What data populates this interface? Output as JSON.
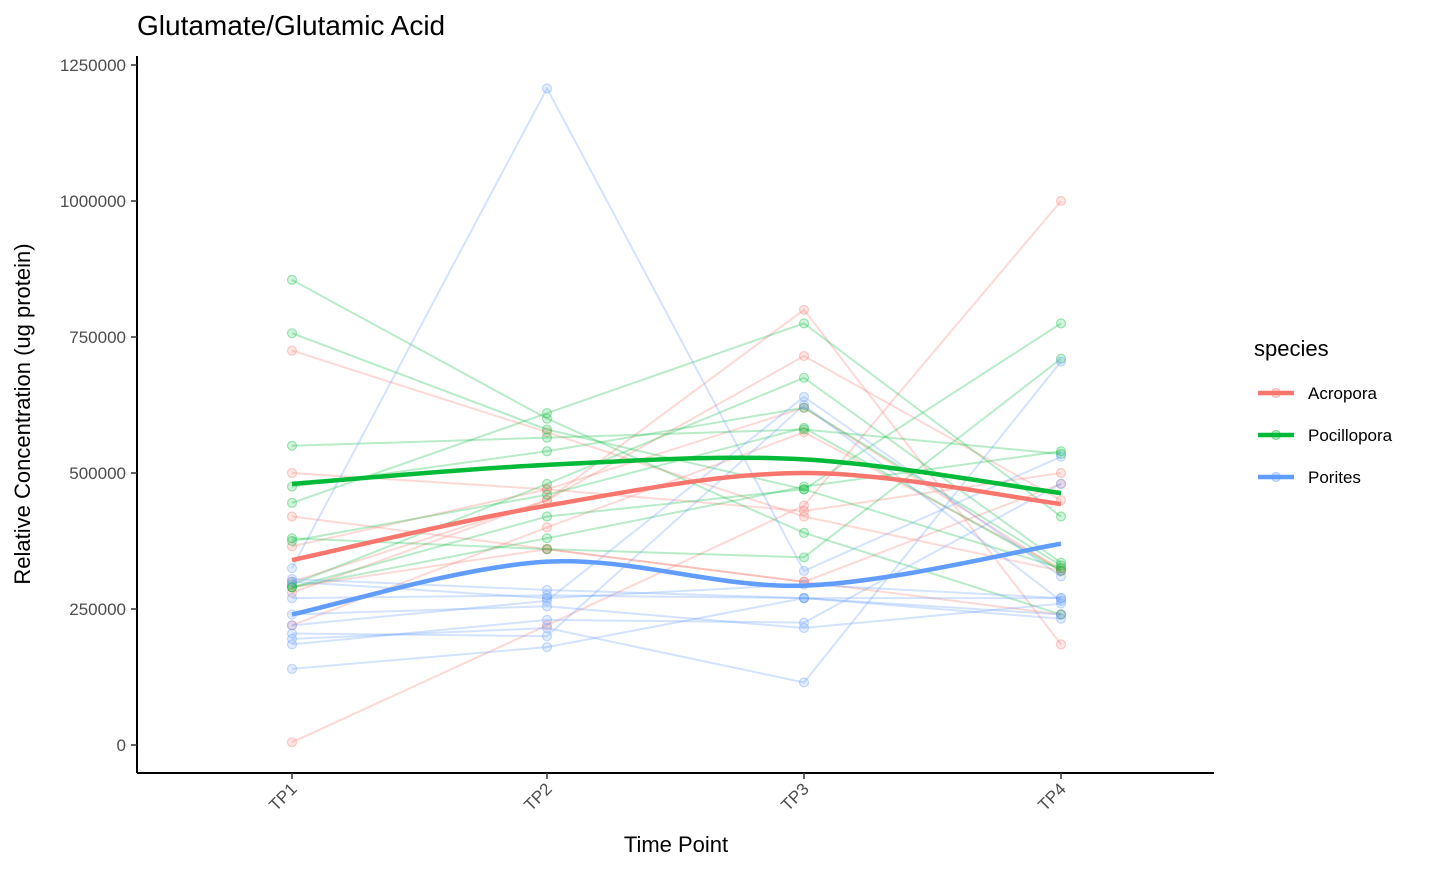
{
  "chart_data": {
    "type": "line",
    "title": "Glutamate/Glutamic Acid",
    "xlabel": "Time Point",
    "ylabel": "Relative Concentration (ug protein)",
    "categories": [
      "TP1",
      "TP2",
      "TP3",
      "TP4"
    ],
    "ylim": [
      -50000,
      1250000
    ],
    "yticks": [
      0,
      250000,
      500000,
      750000,
      1000000,
      1250000
    ],
    "ytick_labels": [
      "0",
      "250000",
      "500000",
      "750000",
      "1000000",
      "1250000"
    ],
    "grid": false,
    "legend": {
      "title": "species",
      "position": "right",
      "entries": [
        "Acropora",
        "Pocillopora",
        "Porites"
      ]
    },
    "series": [
      {
        "name": "Acropora",
        "color": "#F8766D",
        "smooth": [
          340000,
          440000,
          500000,
          443000
        ],
        "individuals": [
          [
            725000,
            575000,
            420000,
            320000
          ],
          [
            500000,
            470000,
            430000,
            500000
          ],
          [
            420000,
            360000,
            300000,
            240000
          ],
          [
            365000,
            470000,
            620000,
            320000
          ],
          [
            300000,
            450000,
            800000,
            185000
          ],
          [
            280000,
            450000,
            715000,
            450000
          ],
          [
            220000,
            400000,
            575000,
            325000
          ],
          [
            5000,
            220000,
            440000,
            1000000
          ],
          [
            290000,
            360000,
            300000,
            480000
          ]
        ]
      },
      {
        "name": "Pocillopora",
        "color": "#00BA38",
        "smooth": [
          480000,
          515000,
          525000,
          463000
        ],
        "individuals": [
          [
            855000,
            600000,
            390000,
            240000
          ],
          [
            757000,
            580000,
            470000,
            325000
          ],
          [
            550000,
            565000,
            580000,
            535000
          ],
          [
            475000,
            540000,
            620000,
            330000
          ],
          [
            445000,
            610000,
            775000,
            420000
          ],
          [
            380000,
            360000,
            345000,
            710000
          ],
          [
            375000,
            460000,
            583000,
            320000
          ],
          [
            295000,
            480000,
            675000,
            335000
          ],
          [
            290000,
            420000,
            470000,
            775000
          ],
          [
            290000,
            380000,
            475000,
            540000
          ]
        ]
      },
      {
        "name": "Porites",
        "color": "#619CFF",
        "smooth": [
          240000,
          337000,
          293000,
          370000
        ],
        "individuals": [
          [
            325000,
            1207000,
            320000,
            530000
          ],
          [
            305000,
            285000,
            270000,
            240000
          ],
          [
            300000,
            270000,
            295000,
            270000
          ],
          [
            270000,
            275000,
            270000,
            270000
          ],
          [
            240000,
            255000,
            215000,
            260000
          ],
          [
            220000,
            265000,
            640000,
            310000
          ],
          [
            205000,
            200000,
            625000,
            265000
          ],
          [
            195000,
            215000,
            115000,
            705000
          ],
          [
            185000,
            230000,
            225000,
            480000
          ],
          [
            140000,
            180000,
            270000,
            232000
          ]
        ]
      }
    ]
  }
}
